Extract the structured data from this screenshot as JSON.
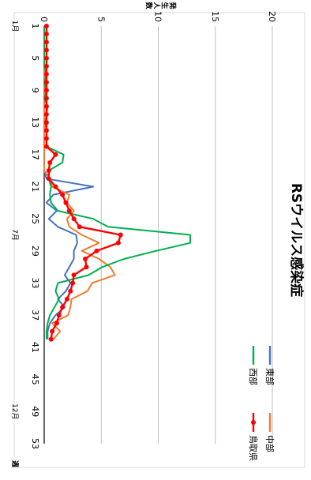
{
  "chart_data": {
    "type": "line",
    "orientation": "rotated-90-clockwise",
    "title": "RSウイルス感染症",
    "ylabel": "発生人数",
    "xlabel": "週",
    "ylim": [
      0,
      20
    ],
    "y_ticks": [
      0,
      5,
      10,
      15,
      20
    ],
    "grid": "horizontal-major",
    "legend_position": "top-right",
    "x": [
      1,
      2,
      3,
      4,
      5,
      6,
      7,
      8,
      9,
      10,
      11,
      12,
      13,
      14,
      15,
      16,
      17,
      18,
      19,
      20,
      21,
      22,
      23,
      24,
      25,
      26,
      27,
      28,
      29,
      30,
      31,
      32,
      33,
      34,
      35,
      36,
      37,
      38,
      39,
      40
    ],
    "x_ticks": [
      1,
      5,
      9,
      13,
      17,
      21,
      25,
      29,
      33,
      37,
      41,
      45,
      49,
      53
    ],
    "month_labels": [
      {
        "label": "1月",
        "week": 1
      },
      {
        "label": "7月",
        "week": 27
      },
      {
        "label": "12月",
        "week": 49
      }
    ],
    "series": [
      {
        "name": "東部",
        "color": "#4472C4",
        "marker": false,
        "values": [
          0,
          0,
          0,
          0,
          0,
          0,
          0,
          0,
          0,
          0,
          0,
          0,
          0,
          0,
          0,
          0,
          0,
          0,
          0,
          0.2,
          4.3,
          0.8,
          0.2,
          1.1,
          0.4,
          1.2,
          2.8,
          2.9,
          2.6,
          2.6,
          2.2,
          1.8,
          2.3,
          1.9,
          1.2,
          1.8,
          1.0,
          0.5,
          0.3,
          0.3
        ]
      },
      {
        "name": "中部",
        "color": "#ED7D31",
        "marker": false,
        "values": [
          0,
          0,
          0,
          0,
          0,
          0,
          0,
          0,
          0,
          0,
          0,
          0,
          0,
          0,
          0,
          0,
          0,
          0,
          0,
          0.5,
          0.7,
          2.2,
          2.0,
          2.6,
          2.0,
          2.2,
          3.3,
          4.8,
          3.3,
          4.8,
          5.8,
          6.2,
          4.2,
          3.8,
          2.4,
          2.3,
          2.1,
          0.7,
          1.4,
          0.8
        ]
      },
      {
        "name": "西部",
        "color": "#00B050",
        "marker": false,
        "values": [
          0,
          0,
          0,
          0,
          0,
          0,
          0.2,
          0,
          0.2,
          0,
          0.3,
          0.2,
          0.1,
          0.2,
          0.2,
          0.2,
          1.7,
          1.6,
          0.4,
          0.4,
          0.6,
          0.5,
          0.6,
          1.2,
          4.3,
          5.6,
          12.8,
          12.8,
          9.8,
          7.0,
          5.1,
          3.9,
          1.2,
          1.0,
          1.3,
          0.9,
          0.5,
          0.3,
          0.2,
          0.2
        ]
      },
      {
        "name": "鳥取県",
        "color": "#FF0000",
        "marker": true,
        "values": [
          0.2,
          0.2,
          0.2,
          0.2,
          0.2,
          0.2,
          0.2,
          0.2,
          0.2,
          0.2,
          0.2,
          0.2,
          0.2,
          0.2,
          0.2,
          0.2,
          1.0,
          0.5,
          0.4,
          0.4,
          1.0,
          1.6,
          1.9,
          2.2,
          2.6,
          3.1,
          6.7,
          6.5,
          4.6,
          3.6,
          3.7,
          2.6,
          2.5,
          2.3,
          2.0,
          1.6,
          1.3,
          1.1,
          0.7,
          0.6
        ]
      }
    ]
  }
}
